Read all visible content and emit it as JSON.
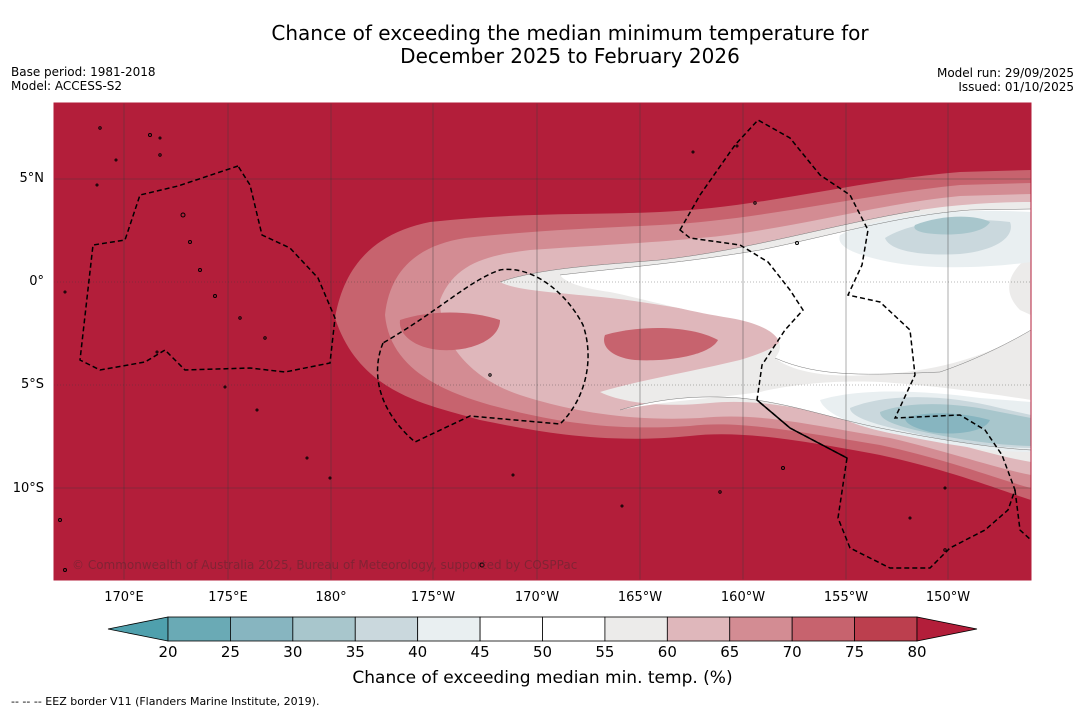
{
  "title_line1": "Chance of exceeding the median minimum temperature for",
  "title_line2": "December 2025 to February 2026",
  "meta_left": {
    "base_period": "Base period: 1981-2018",
    "model": "Model: ACCESS-S2"
  },
  "meta_right": {
    "model_run": "Model run: 29/09/2025",
    "issued": "Issued: 01/10/2025"
  },
  "map": {
    "latitude_labels": [
      "5°N",
      "0°",
      "5°S",
      "10°S"
    ],
    "longitude_labels": [
      "170°E",
      "175°E",
      "180°",
      "175°W",
      "170°W",
      "165°W",
      "160°W",
      "155°W",
      "150°W"
    ],
    "copyright": "© Commonwealth of Australia 2025, Bureau of Meteorology, supported by COSPPac",
    "background_color": "#b31e3a"
  },
  "colorbar": {
    "ticks": [
      "20",
      "25",
      "30",
      "35",
      "40",
      "45",
      "50",
      "55",
      "60",
      "65",
      "70",
      "75",
      "80"
    ],
    "colors": [
      "#6aaab5",
      "#87b5c0",
      "#a8c6cc",
      "#cad8dd",
      "#e9eff1",
      "#ffffff",
      "#ffffff",
      "#ecebea",
      "#dfb7bb",
      "#d38c93",
      "#c7636e",
      "#bc3f4e"
    ],
    "low_extend_color": "#4fa0ad",
    "high_extend_color": "#b31e3a",
    "title": "Chance of exceeding median min. temp. (%)"
  },
  "footer": "--  --  -- EEZ border V11 (Flanders Marine Institute, 2019)."
}
